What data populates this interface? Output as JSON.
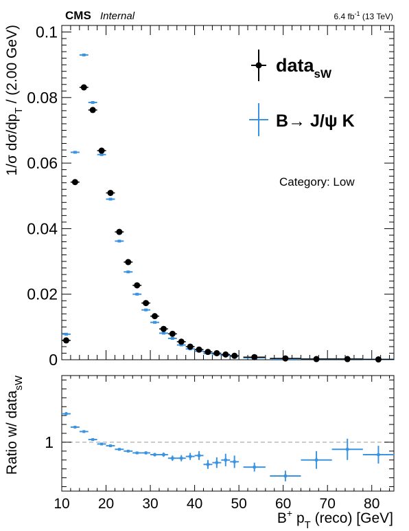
{
  "header": {
    "experiment": "CMS",
    "status": "Internal",
    "lumi_value": "6.4 fb",
    "lumi_exp": "-1",
    "lumi_energy": "(13 TeV)"
  },
  "legend": {
    "data_label": "data",
    "data_sub": "sW",
    "mc_label_prefix": "B",
    "mc_label_arrow": "→",
    "mc_label_suffix": "J/ψ K",
    "category": "Category: Low"
  },
  "axes": {
    "ylabel_top": "1/σ dσ/dp",
    "ylabel_top_sub": "T",
    "ylabel_top_units": " / (2.00 GeV)",
    "ylabel_bottom": "Ratio w/ data",
    "ylabel_bottom_sub": "sW",
    "xlabel_pre": "B",
    "xlabel_sup": "+",
    "xlabel_mid": " p",
    "xlabel_sub": "T",
    "xlabel_post": " (reco) [GeV]"
  },
  "colors": {
    "data": "#000000",
    "mc": "#3a93e0",
    "ref_line": "#bbbbbb"
  },
  "chart_data": [
    {
      "type": "scatter",
      "panel": "main",
      "xlim": [
        10,
        85
      ],
      "ylim": [
        0,
        0.102
      ],
      "yticks": [
        0,
        0.02,
        0.04,
        0.06,
        0.08,
        0.1
      ],
      "ytick_labels": [
        "0",
        "0.02",
        "0.04",
        "0.06",
        "0.08",
        "0.1"
      ],
      "series": [
        {
          "name": "data_sW",
          "x": [
            11,
            13,
            15,
            17,
            19,
            21,
            23,
            25,
            27,
            29,
            31,
            33,
            35,
            37,
            39,
            41,
            43,
            45,
            47,
            49,
            53.5,
            60.5,
            67.5,
            74.5,
            81.5
          ],
          "xerr": [
            1,
            1,
            1,
            1,
            1,
            1,
            1,
            1,
            1,
            1,
            1,
            1,
            1,
            1,
            1,
            1,
            1,
            1,
            1,
            1,
            2.5,
            3.5,
            3.5,
            3.5,
            3.5
          ],
          "y": [
            0.0059,
            0.0542,
            0.0831,
            0.0762,
            0.0638,
            0.0509,
            0.039,
            0.0298,
            0.0227,
            0.0173,
            0.0133,
            0.0094,
            0.0079,
            0.0055,
            0.004,
            0.0031,
            0.0024,
            0.002,
            0.0016,
            0.0012,
            0.0008,
            0.0004,
            0.0002,
            0.0002,
            0.0001
          ]
        },
        {
          "name": "B→J/ψ K",
          "x": [
            11,
            13,
            15,
            17,
            19,
            21,
            23,
            25,
            27,
            29,
            31,
            33,
            35,
            37,
            39,
            41,
            43,
            45,
            47,
            49,
            53.5,
            60.5,
            67.5,
            74.5,
            81.5
          ],
          "xerr": [
            1,
            1,
            1,
            1,
            1,
            1,
            1,
            1,
            1,
            1,
            1,
            1,
            1,
            1,
            1,
            1,
            1,
            1,
            1,
            1,
            2.5,
            3.5,
            3.5,
            3.5,
            3.5
          ],
          "y": [
            0.0078,
            0.0633,
            0.093,
            0.0785,
            0.0626,
            0.049,
            0.0362,
            0.0268,
            0.02,
            0.0152,
            0.0114,
            0.0081,
            0.0065,
            0.0045,
            0.0033,
            0.0026,
            0.0019,
            0.0016,
            0.0013,
            0.001,
            0.0006,
            0.0002,
            0.0002,
            0.0002,
            0.0001
          ]
        }
      ]
    },
    {
      "type": "scatter",
      "panel": "ratio",
      "xlim": [
        10,
        85
      ],
      "ylim": [
        0.45,
        1.75
      ],
      "yticks": [
        1
      ],
      "ytick_labels": [
        "1"
      ],
      "xticks": [
        10,
        20,
        30,
        40,
        50,
        60,
        70,
        80
      ],
      "xtick_labels": [
        "10",
        "20",
        "30",
        "40",
        "50",
        "60",
        "70",
        "80"
      ],
      "reference_line": 1,
      "series": [
        {
          "name": "ratio",
          "x": [
            11,
            13,
            15,
            17,
            19,
            21,
            23,
            25,
            27,
            29,
            31,
            33,
            35,
            37,
            39,
            41,
            43,
            45,
            47,
            49,
            53.5,
            60.5,
            67.5,
            74.5,
            81.5
          ],
          "xerr": [
            1,
            1,
            1,
            1,
            1,
            1,
            1,
            1,
            1,
            1,
            1,
            1,
            1,
            1,
            1,
            1,
            1,
            1,
            1,
            1,
            2.5,
            3.5,
            3.5,
            3.5,
            3.5
          ],
          "y": [
            1.32,
            1.17,
            1.12,
            1.03,
            0.98,
            0.96,
            0.92,
            0.9,
            0.88,
            0.88,
            0.86,
            0.86,
            0.82,
            0.82,
            0.84,
            0.85,
            0.75,
            0.77,
            0.8,
            0.78,
            0.72,
            0.62,
            0.8,
            0.92,
            0.86
          ],
          "yerr": [
            0.02,
            0.015,
            0.012,
            0.012,
            0.012,
            0.012,
            0.012,
            0.012,
            0.015,
            0.018,
            0.02,
            0.025,
            0.03,
            0.035,
            0.04,
            0.05,
            0.05,
            0.06,
            0.07,
            0.07,
            0.05,
            0.06,
            0.1,
            0.12,
            0.1
          ]
        }
      ]
    }
  ]
}
